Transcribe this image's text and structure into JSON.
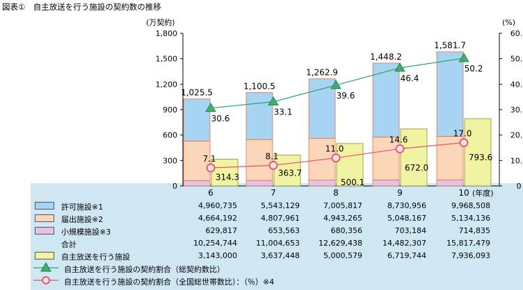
{
  "title": "図表①　自主放送を行う施設の契約数の推移",
  "chart_data": {
    "type": "bar",
    "categories": [
      "6",
      "7",
      "8",
      "9",
      "10"
    ],
    "x_suffix_label": "(年度)",
    "left_axis": {
      "unit_label": "(万契約)",
      "range": [
        0,
        1800
      ],
      "ticks": [
        "0",
        "300",
        "600",
        "900",
        "1,200",
        "1,500",
        "1,800"
      ]
    },
    "right_axis": {
      "unit_label": "(%)",
      "range": [
        0,
        60
      ],
      "ticks": [
        "0",
        "10.0",
        "20.0",
        "30.0",
        "40.0",
        "50.0",
        "60.0"
      ]
    },
    "stack_series": [
      {
        "name": "許可施設※1",
        "color": "#a6d4f2",
        "values": [
          496.1,
          554.3,
          700.6,
          873.1,
          996.9
        ]
      },
      {
        "name": "届出施設※2",
        "color": "#fcd6b8",
        "values": [
          466.4,
          480.8,
          494.3,
          504.8,
          513.4
        ]
      },
      {
        "name": "小規模施設※3",
        "color": "#e4c2e4",
        "values": [
          63.0,
          65.4,
          68.0,
          70.3,
          71.5
        ]
      }
    ],
    "stack_totals": [
      "1,025.5",
      "1,100.5",
      "1,262.9",
      "1,448.2",
      "1,581.7"
    ],
    "bar2_series": {
      "name": "自主放送を行う施設",
      "color": "#f0f3a2",
      "values": [
        314.3,
        363.7,
        500.1,
        672.0,
        793.6
      ],
      "labels": [
        "314.3",
        "363.7",
        "500.1",
        "672.0",
        "793.6"
      ]
    },
    "line_series": [
      {
        "name": "自主放送を行う施設の契約割合（総契約数比）",
        "color": "#2aa36b",
        "marker": "triangle",
        "values": [
          30.6,
          33.1,
          39.6,
          46.4,
          50.2
        ],
        "labels": [
          "30.6",
          "33.1",
          "39.6",
          "46.4",
          "50.2"
        ]
      },
      {
        "name": "自主放送を行う施設の契約割合（全国総世帯数比）：（％）※4",
        "color": "#e8506a",
        "marker": "circle",
        "values": [
          7.1,
          8.1,
          11.0,
          14.6,
          17.0
        ],
        "labels": [
          "7.1",
          "8.1",
          "11.0",
          "14.6",
          "17.0"
        ]
      }
    ],
    "grid": false,
    "legend": "table-below"
  },
  "table": {
    "rows": [
      {
        "label": "許可施設※1",
        "values": [
          "4,960,735",
          "5,543,129",
          "7,005,817",
          "8,730,956",
          "9,968,508"
        ]
      },
      {
        "label": "届出施設※2",
        "values": [
          "4,664,192",
          "4,807,961",
          "4,943,265",
          "5,048,167",
          "5,134,136"
        ]
      },
      {
        "label": "小規模施設※3",
        "values": [
          "629,817",
          "653,563",
          "680,356",
          "703,184",
          "714,835"
        ]
      },
      {
        "label": "合計",
        "values": [
          "10,254,744",
          "11,004,653",
          "12,629,438",
          "14,482,307",
          "15,817,479"
        ]
      },
      {
        "label": "自主放送を行う施設",
        "values": [
          "3,143,000",
          "3,637,448",
          "5,000,579",
          "6,719,744",
          "7,936,093"
        ]
      }
    ],
    "line_legend": [
      "自主放送を行う施設の契約割合（総契約数比）",
      "自主放送を行う施設の契約割合（全国総世帯数比）：（％）※4"
    ]
  }
}
